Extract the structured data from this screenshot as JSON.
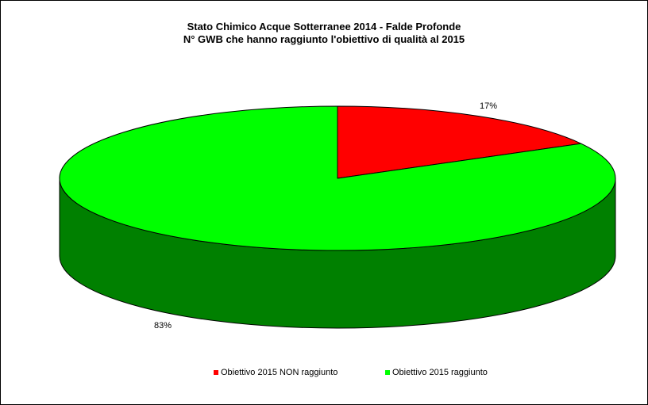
{
  "chart_data": {
    "type": "pie",
    "style": "3d",
    "title": "Stato Chimico Acque Sotterranee 2014 - Falde Profonde",
    "subtitle": "N° GWB che hanno raggiunto l'obiettivo di qualità al 2015",
    "series": [
      {
        "name": "Obiettivo 2015 NON raggiunto",
        "value": 17,
        "label": "17%",
        "color": "#ff0000",
        "side_color": "#cc0000"
      },
      {
        "name": "Obiettivo 2015 raggiunto",
        "value": 83,
        "label": "83%",
        "color": "#00ff00",
        "side_color": "#008000"
      }
    ],
    "legend_position": "bottom",
    "legend": [
      {
        "label": "Obiettivo 2015 NON raggiunto",
        "color": "#ff0000"
      },
      {
        "label": "Obiettivo 2015 raggiunto",
        "color": "#00ff00"
      }
    ]
  }
}
